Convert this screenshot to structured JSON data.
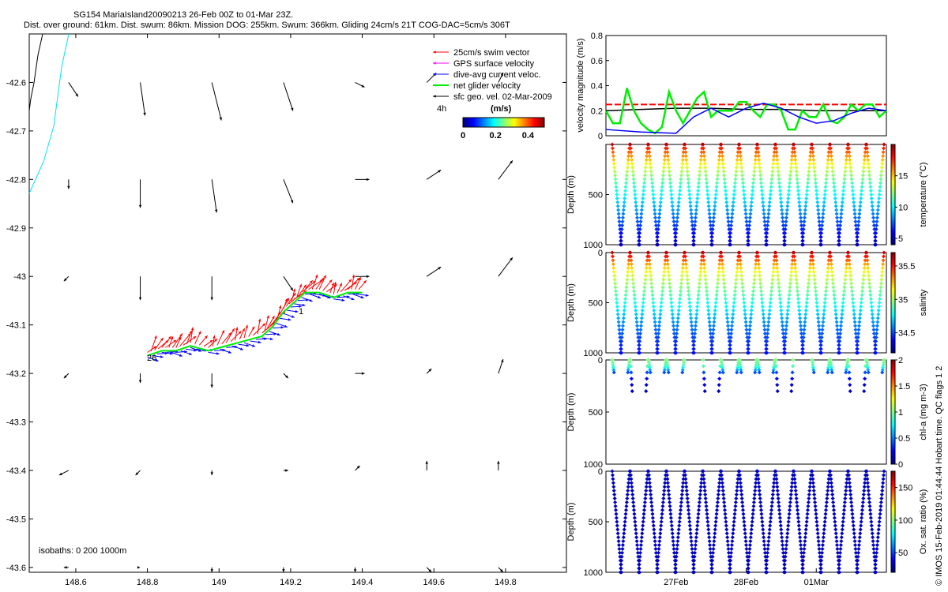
{
  "title_line1": "SG154 MariaIsland20090213 26-Feb 00Z to 01-Mar 23Z.",
  "title_line2": "Dist. over ground: 61km. Dist. swum: 86km. Mission DOG: 255km. Swum: 366km. Gliding 24cm/s 21T COG-DAC=5cm/s 306T",
  "credit": "© IMOS 15-Feb-2019 01:44:44 Hobart time. QC flags 1  2",
  "colors": {
    "swim": "#ff0000",
    "gps": "#ff00ff",
    "dac": "#0000ff",
    "net": "#00ee00",
    "geo": "#000000",
    "coast_black": "#000000",
    "coast_cyan": "#00e5ee"
  },
  "chart_data": [
    {
      "type": "map",
      "x_ticks": [
        148.6,
        148.8,
        149,
        149.2,
        149.4,
        149.6,
        149.8
      ],
      "x_tick_labels": [
        "148.6",
        "148.8",
        "149",
        "149.2",
        "149.4",
        "149.6",
        "149.8"
      ],
      "y_ticks": [
        -42.6,
        -42.7,
        -42.8,
        -42.9,
        -43,
        -43.1,
        -43.2,
        -43.3,
        -43.4,
        -43.5,
        -43.6
      ],
      "y_tick_labels": [
        "-42.6",
        "-42.7",
        "-42.8",
        "-42.9",
        "-43",
        "-43.1",
        "-43.2",
        "-43.3",
        "-43.4",
        "-43.5",
        "-43.6"
      ],
      "xlim": [
        148.47,
        149.97
      ],
      "ylim": [
        -43.61,
        -42.5
      ],
      "legend": {
        "placement": "top-right",
        "items": [
          {
            "label": "25cm/s swim vector",
            "color": "swim"
          },
          {
            "label": "GPS surface velocity",
            "color": "gps"
          },
          {
            "label": "dive-avg current veloc.",
            "color": "dac"
          },
          {
            "label": "net glider velocity",
            "color": "net"
          },
          {
            "label": "sfc geo. vel. 02-Mar-2009",
            "color": "geo"
          }
        ],
        "time_label": "4h",
        "unit_label": "(m/s)"
      },
      "colorbar": {
        "ticks": [
          "0",
          "0.2",
          "0.4"
        ],
        "min": 0,
        "max": 0.5
      },
      "isobaths_label": "isobaths: 0   200  1000m",
      "track_labels": [
        "26",
        "1"
      ],
      "track": [
        [
          148.8,
          -43.16
        ],
        [
          148.84,
          -43.15
        ],
        [
          148.88,
          -43.15
        ],
        [
          148.92,
          -43.14
        ],
        [
          148.97,
          -43.15
        ],
        [
          149.02,
          -43.14
        ],
        [
          149.07,
          -43.13
        ],
        [
          149.12,
          -43.12
        ],
        [
          149.15,
          -43.1
        ],
        [
          149.18,
          -43.07
        ],
        [
          149.21,
          -43.05
        ],
        [
          149.24,
          -43.03
        ],
        [
          149.28,
          -43.03
        ],
        [
          149.32,
          -43.04
        ],
        [
          149.36,
          -43.03
        ],
        [
          149.4,
          -43.03
        ]
      ],
      "geo_vectors": [
        {
          "lon": 148.58,
          "lat": -42.6,
          "u": 0.02,
          "v": -0.03
        },
        {
          "lon": 148.78,
          "lat": -42.6,
          "u": 0.01,
          "v": -0.07
        },
        {
          "lon": 148.98,
          "lat": -42.6,
          "u": 0.02,
          "v": -0.08
        },
        {
          "lon": 149.18,
          "lat": -42.6,
          "u": 0.02,
          "v": -0.06
        },
        {
          "lon": 149.38,
          "lat": -42.6,
          "u": 0.02,
          "v": -0.01
        },
        {
          "lon": 149.58,
          "lat": -42.6,
          "u": 0.02,
          "v": 0.02
        },
        {
          "lon": 149.78,
          "lat": -42.6,
          "u": 0.01,
          "v": 0.02
        },
        {
          "lon": 148.58,
          "lat": -42.8,
          "u": 0.0,
          "v": -0.02
        },
        {
          "lon": 148.78,
          "lat": -42.8,
          "u": 0.0,
          "v": -0.06
        },
        {
          "lon": 148.98,
          "lat": -42.8,
          "u": 0.01,
          "v": -0.07
        },
        {
          "lon": 149.18,
          "lat": -42.8,
          "u": 0.02,
          "v": -0.05
        },
        {
          "lon": 149.38,
          "lat": -42.8,
          "u": 0.03,
          "v": -0.0
        },
        {
          "lon": 149.58,
          "lat": -42.8,
          "u": 0.03,
          "v": 0.02
        },
        {
          "lon": 149.78,
          "lat": -42.8,
          "u": 0.03,
          "v": 0.04
        },
        {
          "lon": 148.58,
          "lat": -43.0,
          "u": -0.01,
          "v": -0.01
        },
        {
          "lon": 148.78,
          "lat": -43.0,
          "u": 0.0,
          "v": -0.05
        },
        {
          "lon": 148.98,
          "lat": -43.0,
          "u": 0.0,
          "v": -0.05
        },
        {
          "lon": 149.18,
          "lat": -43.0,
          "u": 0.02,
          "v": -0.03
        },
        {
          "lon": 149.38,
          "lat": -43.0,
          "u": 0.03,
          "v": 0.0
        },
        {
          "lon": 149.58,
          "lat": -43.0,
          "u": 0.03,
          "v": 0.02
        },
        {
          "lon": 149.78,
          "lat": -43.0,
          "u": 0.03,
          "v": 0.04
        },
        {
          "lon": 148.58,
          "lat": -43.2,
          "u": -0.01,
          "v": -0.01
        },
        {
          "lon": 148.78,
          "lat": -43.2,
          "u": 0.0,
          "v": -0.02
        },
        {
          "lon": 148.98,
          "lat": -43.2,
          "u": 0.0,
          "v": -0.03
        },
        {
          "lon": 149.18,
          "lat": -43.2,
          "u": 0.01,
          "v": -0.01
        },
        {
          "lon": 149.38,
          "lat": -43.2,
          "u": 0.02,
          "v": 0.0
        },
        {
          "lon": 149.58,
          "lat": -43.2,
          "u": 0.01,
          "v": 0.01
        },
        {
          "lon": 149.78,
          "lat": -43.2,
          "u": 0.01,
          "v": 0.03
        },
        {
          "lon": 148.58,
          "lat": -43.4,
          "u": -0.02,
          "v": -0.01
        },
        {
          "lon": 148.78,
          "lat": -43.4,
          "u": -0.01,
          "v": -0.01
        },
        {
          "lon": 148.98,
          "lat": -43.4,
          "u": 0.0,
          "v": -0.01
        },
        {
          "lon": 149.18,
          "lat": -43.4,
          "u": 0.01,
          "v": 0.0
        },
        {
          "lon": 149.38,
          "lat": -43.4,
          "u": 0.01,
          "v": 0.01
        },
        {
          "lon": 149.58,
          "lat": -43.4,
          "u": 0.0,
          "v": 0.02
        },
        {
          "lon": 149.78,
          "lat": -43.4,
          "u": 0.0,
          "v": 0.02
        },
        {
          "lon": 148.58,
          "lat": -43.6,
          "u": -0.01,
          "v": 0.0
        },
        {
          "lon": 148.78,
          "lat": -43.6,
          "u": 0.0,
          "v": 0.0
        },
        {
          "lon": 148.98,
          "lat": -43.6,
          "u": 0.0,
          "v": -0.01
        },
        {
          "lon": 149.18,
          "lat": -43.6,
          "u": 0.0,
          "v": -0.01
        },
        {
          "lon": 149.38,
          "lat": -43.6,
          "u": 0.0,
          "v": -0.01
        },
        {
          "lon": 149.58,
          "lat": -43.6,
          "u": 0.01,
          "v": -0.01
        },
        {
          "lon": 149.78,
          "lat": -43.6,
          "u": 0.01,
          "v": -0.01
        }
      ]
    },
    {
      "type": "line",
      "ylabel": "velocity magnitude (m/s)",
      "ylim": [
        0,
        0.8
      ],
      "y_ticks": [
        0,
        0.2,
        0.4,
        0.6,
        0.8
      ],
      "y_tick_labels": [
        "0",
        "0.2",
        "0.4",
        "0.6",
        "0.8"
      ],
      "xlim": [
        0,
        4
      ],
      "x_ticks": [
        1,
        2,
        3
      ],
      "x_tick_labels": [
        "27Feb",
        "28Feb",
        "01Mar"
      ],
      "series": [
        {
          "color": "swim",
          "dashed": true,
          "x": [
            0,
            4
          ],
          "y": [
            0.25,
            0.25
          ]
        },
        {
          "color": "geo",
          "x": [
            0,
            0.5,
            1,
            1.5,
            2,
            2.5,
            3,
            3.5,
            4
          ],
          "y": [
            0.2,
            0.21,
            0.22,
            0.22,
            0.21,
            0.21,
            0.2,
            0.2,
            0.2
          ]
        },
        {
          "color": "net",
          "x": [
            0,
            0.1,
            0.2,
            0.3,
            0.4,
            0.5,
            0.6,
            0.7,
            0.8,
            0.9,
            1,
            1.1,
            1.2,
            1.3,
            1.4,
            1.5,
            1.6,
            1.7,
            1.8,
            1.9,
            2,
            2.1,
            2.2,
            2.3,
            2.4,
            2.5,
            2.6,
            2.7,
            2.8,
            2.9,
            3,
            3.1,
            3.2,
            3.3,
            3.4,
            3.5,
            3.6,
            3.7,
            3.8,
            3.9,
            4
          ],
          "y": [
            0.2,
            0.1,
            0.1,
            0.38,
            0.2,
            0.1,
            0.05,
            0.02,
            0.07,
            0.35,
            0.2,
            0.1,
            0.2,
            0.3,
            0.35,
            0.15,
            0.2,
            0.2,
            0.2,
            0.27,
            0.27,
            0.2,
            0.15,
            0.25,
            0.25,
            0.2,
            0.05,
            0.05,
            0.2,
            0.15,
            0.15,
            0.25,
            0.12,
            0.1,
            0.15,
            0.25,
            0.2,
            0.25,
            0.25,
            0.15,
            0.2
          ]
        },
        {
          "color": "dac",
          "x": [
            0,
            0.5,
            1,
            1.25,
            1.5,
            1.75,
            2,
            2.25,
            2.5,
            2.75,
            3,
            3.25,
            3.5,
            3.75,
            4
          ],
          "y": [
            0.05,
            0.03,
            0.02,
            0.15,
            0.22,
            0.15,
            0.22,
            0.26,
            0.22,
            0.15,
            0.1,
            0.12,
            0.18,
            0.22,
            0.2
          ]
        }
      ]
    },
    {
      "type": "heatmap",
      "ylabel": "Depth (m)",
      "colorbar_label": "temperature (°C)",
      "ylim": [
        0,
        1000
      ],
      "y_ticks": [
        0,
        500,
        1000
      ],
      "y_tick_labels": [
        "",
        "500",
        "1000"
      ],
      "colorbar_ticks": [
        5,
        10,
        15
      ],
      "colorbar_tick_labels": [
        "5",
        "10",
        "15"
      ],
      "colorbar_range": [
        4,
        20
      ],
      "dives": 15,
      "profile": [
        [
          0,
          19
        ],
        [
          50,
          17
        ],
        [
          100,
          16
        ],
        [
          150,
          15
        ],
        [
          250,
          13
        ],
        [
          400,
          11
        ],
        [
          600,
          9
        ],
        [
          800,
          7
        ],
        [
          1000,
          5
        ]
      ]
    },
    {
      "type": "heatmap",
      "ylabel": "Depth (m)",
      "colorbar_label": "salinity",
      "ylim": [
        0,
        1000
      ],
      "y_ticks": [
        0,
        500,
        1000
      ],
      "y_tick_labels": [
        "0",
        "500",
        "1000"
      ],
      "colorbar_ticks": [
        34.5,
        35,
        35.5
      ],
      "colorbar_tick_labels": [
        "34.5",
        "35",
        "35.5"
      ],
      "colorbar_range": [
        34.2,
        35.7
      ],
      "dives": 15,
      "profile": [
        [
          0,
          35.6
        ],
        [
          100,
          35.3
        ],
        [
          200,
          35.1
        ],
        [
          300,
          35.0
        ],
        [
          500,
          34.8
        ],
        [
          700,
          34.6
        ],
        [
          900,
          34.45
        ],
        [
          1000,
          34.4
        ]
      ]
    },
    {
      "type": "heatmap",
      "ylabel": "Depth (m)",
      "colorbar_label": "chl-a (mg m-3)",
      "ylim": [
        0,
        1000
      ],
      "y_ticks": [
        0,
        500,
        1000
      ],
      "y_tick_labels": [
        "0",
        "500",
        "1000"
      ],
      "colorbar_ticks": [
        0,
        0.5,
        1,
        1.5,
        2
      ],
      "colorbar_tick_labels": [
        "0",
        "0.5",
        "1",
        "1.5",
        "2"
      ],
      "colorbar_range": [
        0,
        2
      ],
      "dives": 15,
      "profile": [
        [
          0,
          1.0
        ],
        [
          60,
          0.9
        ],
        [
          120,
          0.4
        ],
        [
          200,
          0.2
        ],
        [
          300,
          0.1
        ]
      ]
    },
    {
      "type": "heatmap",
      "ylabel": "Depth (m)",
      "colorbar_label": "Ox. sat. ratio (%)",
      "ylim": [
        0,
        1000
      ],
      "y_ticks": [
        0,
        500,
        1000
      ],
      "y_tick_labels": [
        "0",
        "500",
        "1000"
      ],
      "colorbar_ticks": [
        50,
        100,
        150
      ],
      "colorbar_tick_labels": [
        "50",
        "100",
        "150"
      ],
      "colorbar_range": [
        20,
        175
      ],
      "dives": 15,
      "profile": [
        [
          0,
          30
        ],
        [
          1000,
          30
        ]
      ]
    }
  ]
}
